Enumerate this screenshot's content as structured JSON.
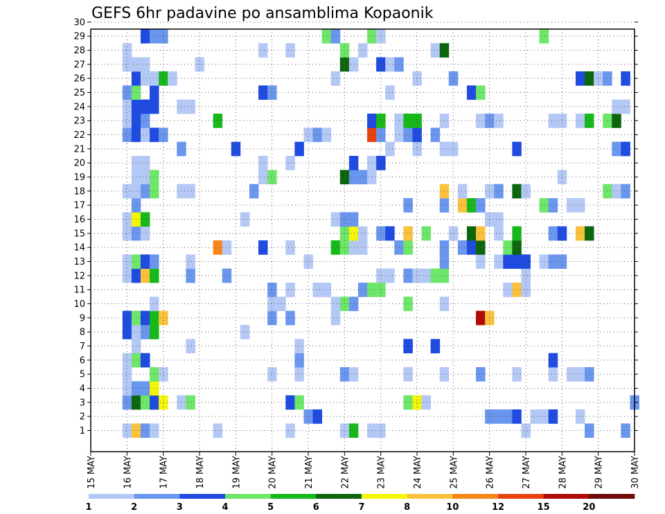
{
  "chart_data": {
    "type": "heatmap",
    "title": "GEFS 6hr padavine po ansamblima Kopaonik",
    "xlabel": "",
    "ylabel": "",
    "x_ticks": [
      "15 MAY",
      "16 MAY",
      "17 MAY",
      "18 MAY",
      "19 MAY",
      "20 MAY",
      "21 MAY",
      "22 MAY",
      "23 MAY",
      "24 MAY",
      "25 MAY",
      "26 MAY",
      "27 MAY",
      "28 MAY",
      "29 MAY",
      "30 MAY"
    ],
    "x_range": [
      0,
      60
    ],
    "y_ticks": [
      1,
      2,
      3,
      4,
      5,
      6,
      7,
      8,
      9,
      10,
      11,
      12,
      13,
      14,
      15,
      16,
      17,
      18,
      19,
      20,
      21,
      22,
      23,
      24,
      25,
      26,
      27,
      28,
      29,
      30
    ],
    "grid": true,
    "colorbar": {
      "labels": [
        "1",
        "2",
        "3",
        "4",
        "5",
        "6",
        "7",
        "8",
        "10",
        "12",
        "15",
        "20"
      ],
      "colors": [
        "#b4c8f5",
        "#6a96ee",
        "#1f4be0",
        "#6ee66a",
        "#17b81a",
        "#0b660d",
        "#f5f50a",
        "#fac23c",
        "#f7861a",
        "#e8420f",
        "#b20a05",
        "#6e0a0a"
      ]
    },
    "cells": [
      [
        4,
        1,
        "#b4c8f5"
      ],
      [
        5,
        1,
        "#fac23c"
      ],
      [
        6,
        1,
        "#6a96ee"
      ],
      [
        7,
        1,
        "#b4c8f5"
      ],
      [
        14,
        1,
        "#b4c8f5"
      ],
      [
        22,
        1,
        "#b4c8f5"
      ],
      [
        28,
        1,
        "#b4c8f5"
      ],
      [
        29,
        1,
        "#17b81a"
      ],
      [
        31,
        1,
        "#b4c8f5"
      ],
      [
        32,
        1,
        "#b4c8f5"
      ],
      [
        48,
        1,
        "#b4c8f5"
      ],
      [
        55,
        1,
        "#6a96ee"
      ],
      [
        59,
        1,
        "#6a96ee"
      ],
      [
        24,
        2,
        "#6a96ee"
      ],
      [
        25,
        2,
        "#1f4be0"
      ],
      [
        44,
        2,
        "#6a96ee"
      ],
      [
        45,
        2,
        "#6a96ee"
      ],
      [
        46,
        2,
        "#6a96ee"
      ],
      [
        47,
        2,
        "#1f4be0"
      ],
      [
        49,
        2,
        "#b4c8f5"
      ],
      [
        50,
        2,
        "#b4c8f5"
      ],
      [
        51,
        2,
        "#1f4be0"
      ],
      [
        54,
        2,
        "#b4c8f5"
      ],
      [
        4,
        3,
        "#6a96ee"
      ],
      [
        5,
        3,
        "#0b660d"
      ],
      [
        6,
        3,
        "#6ee66a"
      ],
      [
        7,
        3,
        "#1f4be0"
      ],
      [
        8,
        3,
        "#f5f50a"
      ],
      [
        10,
        3,
        "#b4c8f5"
      ],
      [
        11,
        3,
        "#6ee66a"
      ],
      [
        22,
        3,
        "#1f4be0"
      ],
      [
        23,
        3,
        "#6ee66a"
      ],
      [
        35,
        3,
        "#6ee66a"
      ],
      [
        36,
        3,
        "#f5f50a"
      ],
      [
        37,
        3,
        "#b4c8f5"
      ],
      [
        60,
        3,
        "#6a96ee"
      ],
      [
        4,
        4,
        "#b4c8f5"
      ],
      [
        5,
        4,
        "#6a96ee"
      ],
      [
        6,
        4,
        "#6a96ee"
      ],
      [
        7,
        4,
        "#f5f50a"
      ],
      [
        4,
        5,
        "#b4c8f5"
      ],
      [
        7,
        5,
        "#6ee66a"
      ],
      [
        8,
        5,
        "#b4c8f5"
      ],
      [
        20,
        5,
        "#b4c8f5"
      ],
      [
        23,
        5,
        "#b4c8f5"
      ],
      [
        28,
        5,
        "#6a96ee"
      ],
      [
        29,
        5,
        "#b4c8f5"
      ],
      [
        35,
        5,
        "#b4c8f5"
      ],
      [
        39,
        5,
        "#b4c8f5"
      ],
      [
        43,
        5,
        "#6a96ee"
      ],
      [
        47,
        5,
        "#b4c8f5"
      ],
      [
        51,
        5,
        "#b4c8f5"
      ],
      [
        53,
        5,
        "#b4c8f5"
      ],
      [
        54,
        5,
        "#b4c8f5"
      ],
      [
        55,
        5,
        "#6a96ee"
      ],
      [
        4,
        6,
        "#b4c8f5"
      ],
      [
        5,
        6,
        "#6ee66a"
      ],
      [
        6,
        6,
        "#1f4be0"
      ],
      [
        23,
        6,
        "#6a96ee"
      ],
      [
        51,
        6,
        "#1f4be0"
      ],
      [
        5,
        7,
        "#b4c8f5"
      ],
      [
        11,
        7,
        "#b4c8f5"
      ],
      [
        23,
        7,
        "#b4c8f5"
      ],
      [
        35,
        7,
        "#1f4be0"
      ],
      [
        38,
        7,
        "#1f4be0"
      ],
      [
        4,
        8,
        "#1f4be0"
      ],
      [
        5,
        8,
        "#b4c8f5"
      ],
      [
        6,
        8,
        "#6a96ee"
      ],
      [
        7,
        8,
        "#17b81a"
      ],
      [
        17,
        8,
        "#b4c8f5"
      ],
      [
        4,
        9,
        "#1f4be0"
      ],
      [
        5,
        9,
        "#6ee66a"
      ],
      [
        6,
        9,
        "#1f4be0"
      ],
      [
        7,
        9,
        "#17b81a"
      ],
      [
        8,
        9,
        "#fac23c"
      ],
      [
        20,
        9,
        "#6a96ee"
      ],
      [
        22,
        9,
        "#6a96ee"
      ],
      [
        27,
        9,
        "#b4c8f5"
      ],
      [
        43,
        9,
        "#b20a05"
      ],
      [
        44,
        9,
        "#fac23c"
      ],
      [
        27,
        10,
        "#b4c8f5"
      ],
      [
        28,
        10,
        "#6ee66a"
      ],
      [
        29,
        10,
        "#6a96ee"
      ],
      [
        35,
        10,
        "#6ee66a"
      ],
      [
        39,
        10,
        "#b4c8f5"
      ],
      [
        7,
        10,
        "#b4c8f5"
      ],
      [
        20,
        10,
        "#b4c8f5"
      ],
      [
        21,
        10,
        "#b4c8f5"
      ],
      [
        20,
        11,
        "#6a96ee"
      ],
      [
        22,
        11,
        "#b4c8f5"
      ],
      [
        25,
        11,
        "#b4c8f5"
      ],
      [
        26,
        11,
        "#b4c8f5"
      ],
      [
        30,
        11,
        "#6a96ee"
      ],
      [
        31,
        11,
        "#6ee66a"
      ],
      [
        32,
        11,
        "#6ee66a"
      ],
      [
        46,
        11,
        "#b4c8f5"
      ],
      [
        47,
        11,
        "#fac23c"
      ],
      [
        48,
        11,
        "#b4c8f5"
      ],
      [
        4,
        12,
        "#b4c8f5"
      ],
      [
        5,
        12,
        "#1f4be0"
      ],
      [
        6,
        12,
        "#fac23c"
      ],
      [
        7,
        12,
        "#17b81a"
      ],
      [
        11,
        12,
        "#6a96ee"
      ],
      [
        15,
        12,
        "#6a96ee"
      ],
      [
        32,
        12,
        "#b4c8f5"
      ],
      [
        33,
        12,
        "#b4c8f5"
      ],
      [
        35,
        12,
        "#6a96ee"
      ],
      [
        36,
        12,
        "#b4c8f5"
      ],
      [
        37,
        12,
        "#b4c8f5"
      ],
      [
        38,
        12,
        "#6ee66a"
      ],
      [
        39,
        12,
        "#6ee66a"
      ],
      [
        48,
        12,
        "#b4c8f5"
      ],
      [
        4,
        13,
        "#b4c8f5"
      ],
      [
        5,
        13,
        "#6ee66a"
      ],
      [
        6,
        13,
        "#1f4be0"
      ],
      [
        7,
        13,
        "#6a96ee"
      ],
      [
        11,
        13,
        "#b4c8f5"
      ],
      [
        24,
        13,
        "#b4c8f5"
      ],
      [
        39,
        13,
        "#6a96ee"
      ],
      [
        43,
        13,
        "#b4c8f5"
      ],
      [
        45,
        13,
        "#b4c8f5"
      ],
      [
        46,
        13,
        "#1f4be0"
      ],
      [
        47,
        13,
        "#1f4be0"
      ],
      [
        48,
        13,
        "#1f4be0"
      ],
      [
        50,
        13,
        "#b4c8f5"
      ],
      [
        51,
        13,
        "#6a96ee"
      ],
      [
        52,
        13,
        "#6a96ee"
      ],
      [
        14,
        14,
        "#f7861a"
      ],
      [
        15,
        14,
        "#b4c8f5"
      ],
      [
        19,
        14,
        "#1f4be0"
      ],
      [
        22,
        14,
        "#b4c8f5"
      ],
      [
        27,
        14,
        "#17b81a"
      ],
      [
        28,
        14,
        "#6ee66a"
      ],
      [
        29,
        14,
        "#b4c8f5"
      ],
      [
        30,
        14,
        "#b4c8f5"
      ],
      [
        34,
        14,
        "#6a96ee"
      ],
      [
        35,
        14,
        "#6ee66a"
      ],
      [
        39,
        14,
        "#6a96ee"
      ],
      [
        41,
        14,
        "#6a96ee"
      ],
      [
        42,
        14,
        "#1f4be0"
      ],
      [
        43,
        14,
        "#0b660d"
      ],
      [
        46,
        14,
        "#6ee66a"
      ],
      [
        47,
        14,
        "#0b660d"
      ],
      [
        4,
        15,
        "#b4c8f5"
      ],
      [
        5,
        15,
        "#6a96ee"
      ],
      [
        6,
        15,
        "#b4c8f5"
      ],
      [
        28,
        15,
        "#6ee66a"
      ],
      [
        29,
        15,
        "#f5f50a"
      ],
      [
        30,
        15,
        "#b4c8f5"
      ],
      [
        32,
        15,
        "#6a96ee"
      ],
      [
        33,
        15,
        "#1f4be0"
      ],
      [
        35,
        15,
        "#fac23c"
      ],
      [
        37,
        15,
        "#6ee66a"
      ],
      [
        40,
        15,
        "#b4c8f5"
      ],
      [
        42,
        15,
        "#0b660d"
      ],
      [
        43,
        15,
        "#fac23c"
      ],
      [
        45,
        15,
        "#b4c8f5"
      ],
      [
        47,
        15,
        "#17b81a"
      ],
      [
        51,
        15,
        "#6a96ee"
      ],
      [
        52,
        15,
        "#1f4be0"
      ],
      [
        54,
        15,
        "#fac23c"
      ],
      [
        55,
        15,
        "#0b660d"
      ],
      [
        4,
        16,
        "#b4c8f5"
      ],
      [
        5,
        16,
        "#f5f50a"
      ],
      [
        6,
        16,
        "#17b81a"
      ],
      [
        17,
        16,
        "#b4c8f5"
      ],
      [
        27,
        16,
        "#b4c8f5"
      ],
      [
        28,
        16,
        "#6a96ee"
      ],
      [
        29,
        16,
        "#6a96ee"
      ],
      [
        44,
        16,
        "#b4c8f5"
      ],
      [
        45,
        16,
        "#b4c8f5"
      ],
      [
        5,
        17,
        "#6a96ee"
      ],
      [
        35,
        17,
        "#6a96ee"
      ],
      [
        39,
        17,
        "#6a96ee"
      ],
      [
        41,
        17,
        "#fac23c"
      ],
      [
        42,
        17,
        "#17b81a"
      ],
      [
        43,
        17,
        "#6a96ee"
      ],
      [
        50,
        17,
        "#6ee66a"
      ],
      [
        51,
        17,
        "#6a96ee"
      ],
      [
        53,
        17,
        "#b4c8f5"
      ],
      [
        54,
        17,
        "#b4c8f5"
      ],
      [
        4,
        18,
        "#b4c8f5"
      ],
      [
        5,
        18,
        "#b4c8f5"
      ],
      [
        6,
        18,
        "#6a96ee"
      ],
      [
        7,
        18,
        "#6ee66a"
      ],
      [
        10,
        18,
        "#b4c8f5"
      ],
      [
        11,
        18,
        "#b4c8f5"
      ],
      [
        18,
        18,
        "#6a96ee"
      ],
      [
        39,
        18,
        "#fac23c"
      ],
      [
        41,
        18,
        "#b4c8f5"
      ],
      [
        44,
        18,
        "#b4c8f5"
      ],
      [
        45,
        18,
        "#6a96ee"
      ],
      [
        47,
        18,
        "#0b660d"
      ],
      [
        48,
        18,
        "#b4c8f5"
      ],
      [
        57,
        18,
        "#6ee66a"
      ],
      [
        58,
        18,
        "#b4c8f5"
      ],
      [
        59,
        18,
        "#6a96ee"
      ],
      [
        5,
        19,
        "#b4c8f5"
      ],
      [
        6,
        19,
        "#b4c8f5"
      ],
      [
        7,
        19,
        "#6ee66a"
      ],
      [
        19,
        19,
        "#b4c8f5"
      ],
      [
        20,
        19,
        "#6ee66a"
      ],
      [
        28,
        19,
        "#0b660d"
      ],
      [
        29,
        19,
        "#6a96ee"
      ],
      [
        30,
        19,
        "#6a96ee"
      ],
      [
        31,
        19,
        "#b4c8f5"
      ],
      [
        52,
        19,
        "#b4c8f5"
      ],
      [
        5,
        20,
        "#b4c8f5"
      ],
      [
        6,
        20,
        "#b4c8f5"
      ],
      [
        19,
        20,
        "#b4c8f5"
      ],
      [
        22,
        20,
        "#b4c8f5"
      ],
      [
        29,
        20,
        "#1f4be0"
      ],
      [
        31,
        20,
        "#b4c8f5"
      ],
      [
        32,
        20,
        "#1f4be0"
      ],
      [
        10,
        21,
        "#6a96ee"
      ],
      [
        16,
        21,
        "#1f4be0"
      ],
      [
        23,
        21,
        "#1f4be0"
      ],
      [
        33,
        21,
        "#b4c8f5"
      ],
      [
        36,
        21,
        "#b4c8f5"
      ],
      [
        39,
        21,
        "#b4c8f5"
      ],
      [
        40,
        21,
        "#b4c8f5"
      ],
      [
        47,
        21,
        "#1f4be0"
      ],
      [
        58,
        21,
        "#6a96ee"
      ],
      [
        59,
        21,
        "#1f4be0"
      ],
      [
        4,
        22,
        "#6a96ee"
      ],
      [
        5,
        22,
        "#1f4be0"
      ],
      [
        6,
        22,
        "#b4c8f5"
      ],
      [
        7,
        22,
        "#1f4be0"
      ],
      [
        8,
        22,
        "#6a96ee"
      ],
      [
        24,
        22,
        "#b4c8f5"
      ],
      [
        25,
        22,
        "#6a96ee"
      ],
      [
        26,
        22,
        "#b4c8f5"
      ],
      [
        31,
        22,
        "#e8420f"
      ],
      [
        32,
        22,
        "#6a96ee"
      ],
      [
        34,
        22,
        "#b4c8f5"
      ],
      [
        35,
        22,
        "#6a96ee"
      ],
      [
        36,
        22,
        "#1f4be0"
      ],
      [
        38,
        22,
        "#6a96ee"
      ],
      [
        4,
        23,
        "#b4c8f5"
      ],
      [
        5,
        23,
        "#1f4be0"
      ],
      [
        6,
        23,
        "#6a96ee"
      ],
      [
        14,
        23,
        "#17b81a"
      ],
      [
        31,
        23,
        "#1f4be0"
      ],
      [
        32,
        23,
        "#17b81a"
      ],
      [
        34,
        23,
        "#b4c8f5"
      ],
      [
        35,
        23,
        "#17b81a"
      ],
      [
        36,
        23,
        "#17b81a"
      ],
      [
        39,
        23,
        "#b4c8f5"
      ],
      [
        43,
        23,
        "#b4c8f5"
      ],
      [
        44,
        23,
        "#6a96ee"
      ],
      [
        45,
        23,
        "#b4c8f5"
      ],
      [
        51,
        23,
        "#b4c8f5"
      ],
      [
        52,
        23,
        "#b4c8f5"
      ],
      [
        54,
        23,
        "#b4c8f5"
      ],
      [
        55,
        23,
        "#17b81a"
      ],
      [
        57,
        23,
        "#6ee66a"
      ],
      [
        58,
        23,
        "#0b660d"
      ],
      [
        4,
        24,
        "#b4c8f5"
      ],
      [
        5,
        24,
        "#1f4be0"
      ],
      [
        6,
        24,
        "#1f4be0"
      ],
      [
        7,
        24,
        "#1f4be0"
      ],
      [
        10,
        24,
        "#b4c8f5"
      ],
      [
        11,
        24,
        "#b4c8f5"
      ],
      [
        58,
        24,
        "#b4c8f5"
      ],
      [
        59,
        24,
        "#b4c8f5"
      ],
      [
        4,
        25,
        "#6a96ee"
      ],
      [
        5,
        25,
        "#6ee66a"
      ],
      [
        7,
        25,
        "#1f4be0"
      ],
      [
        19,
        25,
        "#1f4be0"
      ],
      [
        20,
        25,
        "#6a96ee"
      ],
      [
        33,
        25,
        "#b4c8f5"
      ],
      [
        42,
        25,
        "#1f4be0"
      ],
      [
        43,
        25,
        "#6ee66a"
      ],
      [
        5,
        26,
        "#1f4be0"
      ],
      [
        6,
        26,
        "#b4c8f5"
      ],
      [
        7,
        26,
        "#b4c8f5"
      ],
      [
        8,
        26,
        "#17b81a"
      ],
      [
        9,
        26,
        "#b4c8f5"
      ],
      [
        27,
        26,
        "#b4c8f5"
      ],
      [
        36,
        26,
        "#b4c8f5"
      ],
      [
        40,
        26,
        "#6a96ee"
      ],
      [
        54,
        26,
        "#1f4be0"
      ],
      [
        55,
        26,
        "#0b660d"
      ],
      [
        56,
        26,
        "#b4c8f5"
      ],
      [
        57,
        26,
        "#6a96ee"
      ],
      [
        59,
        26,
        "#1f4be0"
      ],
      [
        4,
        27,
        "#b4c8f5"
      ],
      [
        5,
        27,
        "#b4c8f5"
      ],
      [
        6,
        27,
        "#b4c8f5"
      ],
      [
        12,
        27,
        "#b4c8f5"
      ],
      [
        28,
        27,
        "#0b660d"
      ],
      [
        29,
        27,
        "#b4c8f5"
      ],
      [
        32,
        27,
        "#1f4be0"
      ],
      [
        33,
        27,
        "#b4c8f5"
      ],
      [
        34,
        27,
        "#6a96ee"
      ],
      [
        4,
        28,
        "#b4c8f5"
      ],
      [
        19,
        28,
        "#b4c8f5"
      ],
      [
        22,
        28,
        "#b4c8f5"
      ],
      [
        28,
        28,
        "#6ee66a"
      ],
      [
        30,
        28,
        "#b4c8f5"
      ],
      [
        38,
        28,
        "#b4c8f5"
      ],
      [
        39,
        28,
        "#0b660d"
      ],
      [
        6,
        29,
        "#1f4be0"
      ],
      [
        7,
        29,
        "#6a96ee"
      ],
      [
        8,
        29,
        "#6a96ee"
      ],
      [
        26,
        29,
        "#6ee66a"
      ],
      [
        27,
        29,
        "#6a96ee"
      ],
      [
        31,
        29,
        "#6ee66a"
      ],
      [
        32,
        29,
        "#b4c8f5"
      ],
      [
        50,
        29,
        "#6ee66a"
      ]
    ]
  }
}
